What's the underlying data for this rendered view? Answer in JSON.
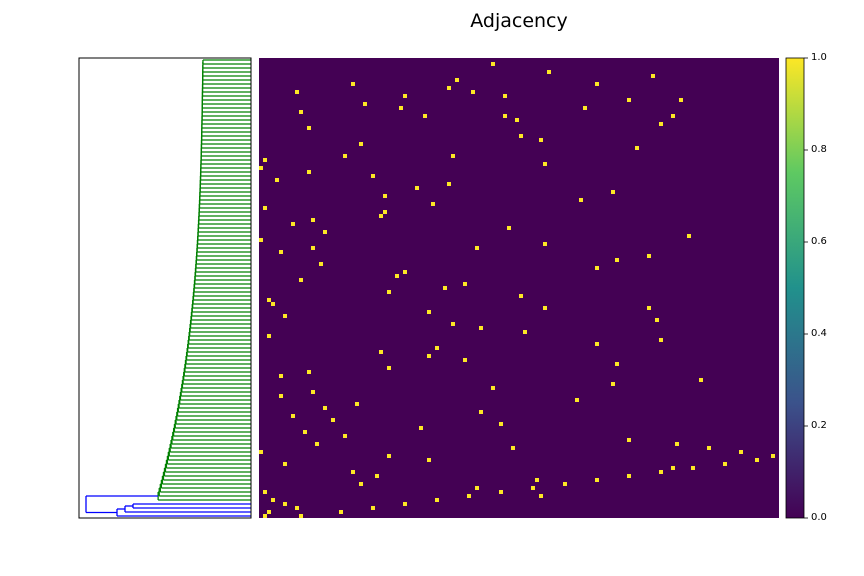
{
  "chart_data": {
    "type": "heatmap",
    "title": "Adjacency",
    "colorbar": {
      "min": 0.0,
      "max": 1.0,
      "ticks": [
        "0.0",
        "0.2",
        "0.4",
        "0.6",
        "0.8",
        "1.0"
      ],
      "colormap": "viridis"
    },
    "matrix": {
      "rows": 115,
      "cols": 130,
      "values": "binary (0 or 1)",
      "background_color": "#440154",
      "cell_color_1": "#fde725",
      "cells": [
        [
          1,
          58
        ],
        [
          3,
          72
        ],
        [
          4,
          98
        ],
        [
          5,
          49
        ],
        [
          6,
          23
        ],
        [
          6,
          84
        ],
        [
          7,
          47
        ],
        [
          8,
          9
        ],
        [
          8,
          53
        ],
        [
          9,
          36
        ],
        [
          9,
          61
        ],
        [
          10,
          92
        ],
        [
          10,
          105
        ],
        [
          11,
          26
        ],
        [
          12,
          35
        ],
        [
          12,
          81
        ],
        [
          13,
          10
        ],
        [
          14,
          41
        ],
        [
          14,
          61
        ],
        [
          14,
          103
        ],
        [
          15,
          64
        ],
        [
          16,
          100
        ],
        [
          17,
          12
        ],
        [
          19,
          65
        ],
        [
          20,
          70
        ],
        [
          21,
          25
        ],
        [
          22,
          94
        ],
        [
          24,
          21
        ],
        [
          24,
          48
        ],
        [
          25,
          1
        ],
        [
          26,
          71
        ],
        [
          27,
          0
        ],
        [
          28,
          12
        ],
        [
          29,
          28
        ],
        [
          30,
          4
        ],
        [
          31,
          47
        ],
        [
          32,
          39
        ],
        [
          33,
          88
        ],
        [
          34,
          31
        ],
        [
          35,
          80
        ],
        [
          36,
          43
        ],
        [
          37,
          1
        ],
        [
          38,
          31
        ],
        [
          39,
          30
        ],
        [
          40,
          13
        ],
        [
          41,
          8
        ],
        [
          42,
          62
        ],
        [
          43,
          16
        ],
        [
          44,
          107
        ],
        [
          45,
          0
        ],
        [
          46,
          71
        ],
        [
          47,
          13
        ],
        [
          47,
          54
        ],
        [
          48,
          5
        ],
        [
          49,
          97
        ],
        [
          50,
          89
        ],
        [
          51,
          15
        ],
        [
          52,
          84
        ],
        [
          53,
          36
        ],
        [
          54,
          34
        ],
        [
          55,
          10
        ],
        [
          56,
          51
        ],
        [
          57,
          46
        ],
        [
          58,
          32
        ],
        [
          59,
          65
        ],
        [
          60,
          2
        ],
        [
          61,
          3
        ],
        [
          62,
          71
        ],
        [
          62,
          97
        ],
        [
          63,
          42
        ],
        [
          64,
          6
        ],
        [
          65,
          99
        ],
        [
          66,
          48
        ],
        [
          67,
          55
        ],
        [
          68,
          66
        ],
        [
          69,
          2
        ],
        [
          70,
          100
        ],
        [
          71,
          84
        ],
        [
          72,
          44
        ],
        [
          73,
          30
        ],
        [
          74,
          42
        ],
        [
          75,
          51
        ],
        [
          76,
          89
        ],
        [
          77,
          32
        ],
        [
          78,
          12
        ],
        [
          79,
          5
        ],
        [
          80,
          110
        ],
        [
          81,
          88
        ],
        [
          82,
          58
        ],
        [
          83,
          13
        ],
        [
          84,
          5
        ],
        [
          85,
          79
        ],
        [
          86,
          24
        ],
        [
          87,
          16
        ],
        [
          88,
          55
        ],
        [
          89,
          8
        ],
        [
          90,
          18
        ],
        [
          91,
          60
        ],
        [
          92,
          40
        ],
        [
          93,
          11
        ],
        [
          94,
          21
        ],
        [
          95,
          92
        ],
        [
          96,
          14
        ],
        [
          97,
          63
        ],
        [
          98,
          0
        ],
        [
          99,
          32
        ],
        [
          100,
          42
        ],
        [
          101,
          6
        ],
        [
          102,
          103
        ],
        [
          103,
          23
        ],
        [
          104,
          29
        ],
        [
          105,
          69
        ],
        [
          106,
          25
        ],
        [
          107,
          54
        ],
        [
          108,
          1
        ],
        [
          109,
          70
        ],
        [
          110,
          3
        ],
        [
          111,
          6
        ],
        [
          112,
          9
        ],
        [
          113,
          2
        ],
        [
          114,
          1
        ],
        [
          114,
          10
        ],
        [
          113,
          20
        ],
        [
          112,
          28
        ],
        [
          111,
          36
        ],
        [
          110,
          44
        ],
        [
          109,
          52
        ],
        [
          108,
          60
        ],
        [
          107,
          68
        ],
        [
          106,
          76
        ],
        [
          105,
          84
        ],
        [
          104,
          92
        ],
        [
          103,
          100
        ],
        [
          102,
          108
        ],
        [
          101,
          116
        ],
        [
          100,
          124
        ],
        [
          99,
          128
        ],
        [
          98,
          120
        ],
        [
          97,
          112
        ],
        [
          96,
          104
        ]
      ]
    },
    "dendrogram": {
      "orientation": "left",
      "leaves": 115,
      "colors": {
        "main_cluster": "#008000",
        "outlier_cluster": "#0000ff"
      },
      "outlier_leaf_count": 4
    }
  }
}
